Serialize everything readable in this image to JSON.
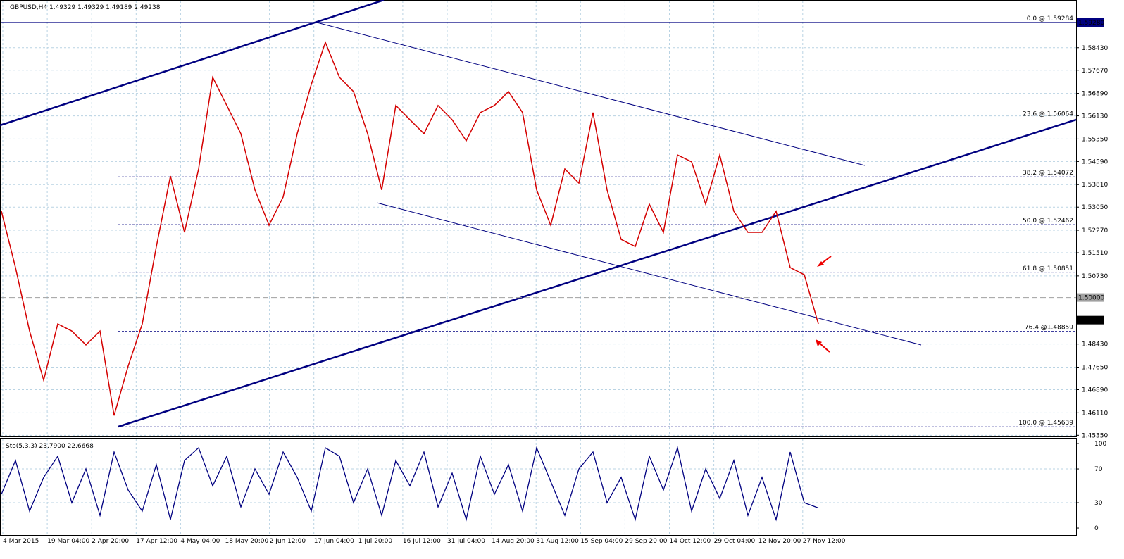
{
  "chart_data": {
    "type": "line",
    "title": "GBPUSD,H4  1.49329 1.49329 1.49189 1.49238",
    "x_labels": [
      "4 Mar 2015",
      "19 Mar 04:00",
      "2 Apr 20:00",
      "17 Apr 12:00",
      "4 May 04:00",
      "18 May 20:00",
      "2 Jun 12:00",
      "17 Jun 04:00",
      "1 Jul 20:00",
      "16 Jul 12:00",
      "31 Jul 04:00",
      "14 Aug 20:00",
      "31 Aug 12:00",
      "15 Sep 04:00",
      "29 Sep 20:00",
      "14 Oct 12:00",
      "29 Oct 04:00",
      "12 Nov 20:00",
      "27 Nov 12:00"
    ],
    "series": [
      {
        "color": "#d40000",
        "values": [
          1.5291,
          1.5101,
          1.4887,
          1.4721,
          1.4911,
          1.4887,
          1.484,
          1.4887,
          1.4602,
          1.4769,
          1.4911,
          1.5172,
          1.541,
          1.522,
          1.5434,
          1.5743,
          1.5648,
          1.5553,
          1.5363,
          1.5244,
          1.5339,
          1.5553,
          1.5719,
          1.5861,
          1.5743,
          1.5695,
          1.5553,
          1.5363,
          1.5648,
          1.56,
          1.5553,
          1.5648,
          1.56,
          1.5529,
          1.5624,
          1.5648,
          1.5695,
          1.5624,
          1.5363,
          1.5244,
          1.5434,
          1.5386,
          1.5624,
          1.5363,
          1.5196,
          1.5172,
          1.5315,
          1.522,
          1.5481,
          1.5458,
          1.5315,
          1.5481,
          1.5291,
          1.522,
          1.522,
          1.5291,
          1.5101,
          1.5077,
          1.4911
        ]
      }
    ],
    "ylim": [
      1.4531,
      1.6004
    ],
    "yticks": [
      {
        "value": 1.5843,
        "label": "1.58430"
      },
      {
        "value": 1.5767,
        "label": "1.57670"
      },
      {
        "value": 1.5689,
        "label": "1.56890"
      },
      {
        "value": 1.5613,
        "label": "1.56130"
      },
      {
        "value": 1.5535,
        "label": "1.55350"
      },
      {
        "value": 1.5459,
        "label": "1.54590"
      },
      {
        "value": 1.5381,
        "label": "1.53810"
      },
      {
        "value": 1.5305,
        "label": "1.53050"
      },
      {
        "value": 1.5227,
        "label": "1.52270"
      },
      {
        "value": 1.5151,
        "label": "1.51510"
      },
      {
        "value": 1.5073,
        "label": "1.50730"
      },
      {
        "value": 1.4843,
        "label": "1.48430"
      },
      {
        "value": 1.4765,
        "label": "1.47650"
      },
      {
        "value": 1.4689,
        "label": "1.46890"
      },
      {
        "value": 1.4611,
        "label": "1.46110"
      },
      {
        "value": 1.4535,
        "label": "1.45350"
      }
    ],
    "price_markers": [
      {
        "value": 1.5928,
        "label": "1.59280",
        "color": "#000080"
      },
      {
        "value": 1.5,
        "label": "1.50000",
        "color": "#a0a0a0"
      },
      {
        "value": 1.49238,
        "label": "1.49238",
        "color": "#000000"
      }
    ],
    "fib_levels": [
      {
        "value": 1.59284,
        "label": "0.0 @ 1.59284"
      },
      {
        "value": 1.56064,
        "label": "23.6 @ 1.56064"
      },
      {
        "value": 1.54072,
        "label": "38.2 @ 1.54072"
      },
      {
        "value": 1.52462,
        "label": "50.0 @ 1.52462"
      },
      {
        "value": 1.50851,
        "label": "61.8 @ 1.50851"
      },
      {
        "value": 1.48859,
        "label": "76.4 @1.48859"
      },
      {
        "value": 1.45639,
        "label": "100.0 @ 1.45639"
      }
    ],
    "oscillator": {
      "title": "Sto(5,3,3) 23.7900 22.6668",
      "color": "#000080",
      "ylim": [
        -8.3,
        106.7
      ],
      "yticks": [
        0,
        30,
        70,
        100
      ],
      "values": [
        40,
        80,
        20,
        60,
        85,
        30,
        70,
        15,
        90,
        45,
        20,
        75,
        10,
        80,
        95,
        50,
        85,
        25,
        70,
        40,
        90,
        60,
        20,
        95,
        85,
        30,
        70,
        15,
        80,
        50,
        90,
        25,
        65,
        10,
        85,
        40,
        75,
        20,
        95,
        55,
        15,
        70,
        90,
        30,
        60,
        10,
        85,
        45,
        95,
        20,
        70,
        35,
        80,
        15,
        60,
        10,
        90,
        30,
        23.79
      ]
    }
  }
}
